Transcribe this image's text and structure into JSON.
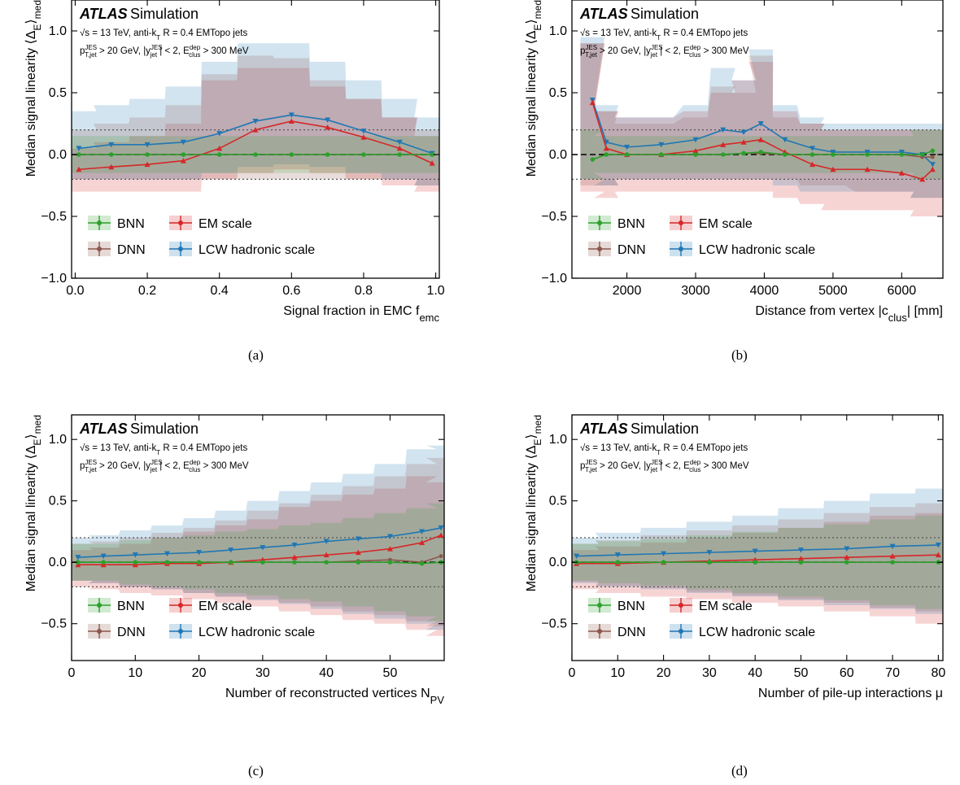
{
  "colors": {
    "BNN": "#2ca02c",
    "DNN": "#8c564b",
    "EM": "#d62728",
    "LCW": "#1f77b4"
  },
  "labels": {
    "atlas": "ATLAS",
    "simulation": "Simulation",
    "energy_line_prefix": "= 13 TeV, anti-k",
    "energy_line_suffix": " R = 0.4 EMTopo jets",
    "sqrt_s": "√s",
    "kt_sub": "T",
    "cut_line": "> 20 GeV, |y",
    "cut_line2": "| < 2, E",
    "cut_line3": "> 300 MeV",
    "pt": "p",
    "sup_jes": "JES",
    "sub_tjet": "T,jet",
    "sub_jet": "jet",
    "sup_dep": "dep",
    "sub_clus": "clus",
    "ylabel": "Median signal linearity ⟨Δ",
    "ylabel_sub": "E",
    "ylabel_end": "⟩",
    "ylabel_med": "med"
  },
  "legend": [
    "BNN",
    "EM scale",
    "DNN",
    "LCW hadronic scale"
  ],
  "captions": [
    "(a)",
    "(b)",
    "(c)",
    "(d)"
  ],
  "chart_data": [
    {
      "type": "line",
      "id": "a",
      "xlabel": "Signal fraction in EMC f",
      "xlabel_sub": "emc",
      "xlim": [
        -0.01,
        1.01
      ],
      "ylim": [
        -1.0,
        1.25
      ],
      "xticks": [
        0.0,
        0.2,
        0.4,
        0.6,
        0.8,
        1.0
      ],
      "xtick_labels": [
        "0.0",
        "0.2",
        "0.4",
        "0.6",
        "0.8",
        "1.0"
      ],
      "yticks": [
        -1.0,
        -0.5,
        0.0,
        0.5,
        1.0
      ],
      "ytick_labels": [
        "−1.0",
        "−0.5",
        "0.0",
        "0.5",
        "1.0"
      ],
      "x": [
        0.01,
        0.1,
        0.2,
        0.3,
        0.4,
        0.5,
        0.6,
        0.7,
        0.8,
        0.9,
        0.99
      ],
      "series": [
        {
          "name": "BNN",
          "values": [
            0.0,
            0.0,
            0.0,
            0.0,
            0.0,
            0.0,
            0.0,
            0.0,
            0.0,
            0.0,
            0.0
          ]
        },
        {
          "name": "DNN",
          "values": [
            0.0,
            0.0,
            0.0,
            0.0,
            0.0,
            0.0,
            0.0,
            0.0,
            0.0,
            0.0,
            0.0
          ]
        },
        {
          "name": "EM scale",
          "values": [
            -0.12,
            -0.1,
            -0.08,
            -0.05,
            0.05,
            0.2,
            0.27,
            0.22,
            0.14,
            0.05,
            -0.07
          ]
        },
        {
          "name": "LCW hadronic scale",
          "values": [
            0.05,
            0.08,
            0.08,
            0.1,
            0.17,
            0.27,
            0.32,
            0.28,
            0.19,
            0.1,
            0.01
          ]
        }
      ],
      "bands": [
        {
          "name": "EM scale",
          "lo": [
            -0.3,
            -0.3,
            -0.3,
            -0.3,
            -0.2,
            -0.15,
            -0.12,
            -0.15,
            -0.2,
            -0.25,
            -0.3
          ],
          "hi": [
            0.05,
            0.1,
            0.15,
            0.25,
            0.6,
            0.7,
            0.7,
            0.55,
            0.45,
            0.3,
            0.15
          ]
        },
        {
          "name": "LCW hadronic scale",
          "lo": [
            -0.2,
            -0.2,
            -0.2,
            -0.2,
            -0.15,
            -0.1,
            -0.08,
            -0.1,
            -0.15,
            -0.2,
            -0.25
          ],
          "hi": [
            0.35,
            0.4,
            0.45,
            0.55,
            0.75,
            0.9,
            0.9,
            0.75,
            0.6,
            0.45,
            0.3
          ]
        },
        {
          "name": "DNN",
          "lo": [
            -0.2,
            -0.2,
            -0.2,
            -0.2,
            -0.2,
            -0.2,
            -0.2,
            -0.2,
            -0.2,
            -0.2,
            -0.25
          ],
          "hi": [
            0.2,
            0.25,
            0.3,
            0.4,
            0.65,
            0.8,
            0.78,
            0.6,
            0.45,
            0.3,
            0.2
          ]
        },
        {
          "name": "BNN",
          "lo": [
            -0.15,
            -0.15,
            -0.15,
            -0.15,
            -0.15,
            -0.15,
            -0.15,
            -0.15,
            -0.15,
            -0.15,
            -0.15
          ],
          "hi": [
            0.15,
            0.15,
            0.15,
            0.15,
            0.15,
            0.15,
            0.15,
            0.15,
            0.15,
            0.15,
            0.15
          ]
        }
      ],
      "hlines": [
        0.2,
        -0.2
      ]
    },
    {
      "type": "line",
      "id": "b",
      "xlabel": "Distance from vertex |c",
      "xlabel_sub": "clus",
      "xlabel_end": "| [mm]",
      "xlim": [
        1200,
        6600
      ],
      "ylim": [
        -1.0,
        1.25
      ],
      "xticks": [
        2000,
        3000,
        4000,
        5000,
        6000
      ],
      "xtick_labels": [
        "2000",
        "3000",
        "4000",
        "5000",
        "6000"
      ],
      "yticks": [
        -1.0,
        -0.5,
        0.0,
        0.5,
        1.0
      ],
      "ytick_labels": [
        "−1.0",
        "−0.5",
        "0.0",
        "0.5",
        "1.0"
      ],
      "x": [
        1500,
        1700,
        2000,
        2500,
        3000,
        3400,
        3700,
        3950,
        4300,
        4700,
        5000,
        5500,
        6000,
        6300,
        6450
      ],
      "series": [
        {
          "name": "BNN",
          "values": [
            -0.04,
            0.0,
            0.0,
            0.0,
            0.0,
            0.0,
            0.01,
            0.02,
            0.0,
            0.0,
            0.0,
            0.0,
            0.0,
            0.0,
            0.03
          ]
        },
        {
          "name": "DNN",
          "values": [
            -0.04,
            0.0,
            0.0,
            0.0,
            0.0,
            0.0,
            0.01,
            0.01,
            0.0,
            0.0,
            0.0,
            0.0,
            0.0,
            -0.02,
            -0.02
          ]
        },
        {
          "name": "EM scale",
          "values": [
            0.42,
            0.05,
            0.0,
            0.0,
            0.03,
            0.08,
            0.1,
            0.12,
            0.02,
            -0.08,
            -0.12,
            -0.12,
            -0.15,
            -0.2,
            -0.12
          ]
        },
        {
          "name": "LCW hadronic scale",
          "values": [
            0.44,
            0.1,
            0.06,
            0.08,
            0.12,
            0.2,
            0.18,
            0.25,
            0.12,
            0.05,
            0.02,
            0.02,
            0.02,
            0.0,
            -0.08
          ]
        }
      ],
      "bands": [
        {
          "name": "EM scale",
          "lo": [
            -0.3,
            -0.35,
            -0.3,
            -0.3,
            -0.3,
            -0.3,
            -0.3,
            -0.3,
            -0.35,
            -0.4,
            -0.45,
            -0.45,
            -0.45,
            -0.5,
            -0.5
          ]
        },
        {
          "name": "LCW hadronic scale",
          "lo": [
            -0.2,
            -0.25,
            -0.2,
            -0.2,
            -0.2,
            -0.2,
            -0.2,
            -0.2,
            -0.25,
            -0.3,
            -0.3,
            -0.3,
            -0.3,
            -0.35,
            -0.35
          ]
        },
        {
          "name": "DNN",
          "lo": [
            -0.25,
            -0.25,
            -0.2,
            -0.2,
            -0.2,
            -0.2,
            -0.2,
            -0.2,
            -0.2,
            -0.25,
            -0.25,
            -0.3,
            -0.3,
            -0.35,
            -0.35
          ]
        },
        {
          "name": "BNN",
          "lo": [
            -0.2,
            -0.15,
            -0.15,
            -0.15,
            -0.15,
            -0.15,
            -0.15,
            -0.15,
            -0.15,
            -0.15,
            -0.15,
            -0.15,
            -0.15,
            -0.2,
            -0.2
          ]
        }
      ],
      "bands_hi": [
        [
          0.9,
          0.35,
          0.3,
          0.3,
          0.35,
          0.5,
          0.6,
          0.75,
          0.35,
          0.25,
          0.2,
          0.2,
          0.2,
          0.2,
          0.2
        ],
        [
          0.95,
          0.4,
          0.3,
          0.3,
          0.4,
          0.7,
          0.6,
          0.85,
          0.4,
          0.3,
          0.25,
          0.25,
          0.25,
          0.25,
          0.25
        ],
        [
          0.9,
          0.35,
          0.25,
          0.25,
          0.3,
          0.55,
          0.5,
          0.8,
          0.3,
          0.25,
          0.2,
          0.2,
          0.2,
          0.2,
          0.2
        ],
        [
          0.2,
          0.15,
          0.15,
          0.15,
          0.15,
          0.15,
          0.15,
          0.15,
          0.15,
          0.15,
          0.15,
          0.15,
          0.15,
          0.2,
          0.2
        ]
      ],
      "hlines": [
        0.2,
        -0.2
      ]
    },
    {
      "type": "line",
      "id": "c",
      "xlabel": "Number of reconstructed vertices N",
      "xlabel_sub": "PV",
      "xlim": [
        0,
        58.5
      ],
      "ylim": [
        -0.8,
        1.2
      ],
      "xticks": [
        0,
        10,
        20,
        30,
        40,
        50
      ],
      "xtick_labels": [
        "0",
        "10",
        "20",
        "30",
        "40",
        "50"
      ],
      "yticks": [
        -0.5,
        0.0,
        0.5,
        1.0
      ],
      "ytick_labels": [
        "−0.5",
        "0.0",
        "0.5",
        "1.0"
      ],
      "x": [
        1,
        5,
        10,
        15,
        20,
        25,
        30,
        35,
        40,
        45,
        50,
        55,
        58
      ],
      "series": [
        {
          "name": "BNN",
          "values": [
            0.0,
            0.0,
            0.0,
            0.0,
            0.0,
            0.0,
            0.0,
            0.0,
            0.0,
            0.0,
            0.0,
            -0.01,
            0.0
          ]
        },
        {
          "name": "DNN",
          "values": [
            0.0,
            0.0,
            0.0,
            0.0,
            0.0,
            0.0,
            0.0,
            0.0,
            0.0,
            0.01,
            0.02,
            0.0,
            0.05
          ]
        },
        {
          "name": "EM scale",
          "values": [
            -0.02,
            -0.02,
            -0.02,
            -0.01,
            -0.01,
            0.0,
            0.02,
            0.04,
            0.06,
            0.08,
            0.11,
            0.16,
            0.22
          ]
        },
        {
          "name": "LCW hadronic scale",
          "values": [
            0.04,
            0.05,
            0.06,
            0.07,
            0.08,
            0.1,
            0.12,
            0.14,
            0.17,
            0.19,
            0.21,
            0.25,
            0.28
          ]
        }
      ],
      "bands": [
        {
          "name": "EM scale",
          "lo": [
            -0.2,
            -0.22,
            -0.25,
            -0.27,
            -0.3,
            -0.33,
            -0.36,
            -0.4,
            -0.43,
            -0.47,
            -0.5,
            -0.55,
            -0.6
          ]
        },
        {
          "name": "LCW hadronic scale",
          "lo": [
            -0.15,
            -0.17,
            -0.2,
            -0.22,
            -0.25,
            -0.28,
            -0.31,
            -0.34,
            -0.38,
            -0.42,
            -0.46,
            -0.5,
            -0.55
          ]
        },
        {
          "name": "DNN",
          "lo": [
            -0.15,
            -0.17,
            -0.2,
            -0.22,
            -0.25,
            -0.28,
            -0.3,
            -0.33,
            -0.36,
            -0.4,
            -0.43,
            -0.48,
            -0.52
          ]
        },
        {
          "name": "BNN",
          "lo": [
            -0.15,
            -0.15,
            -0.18,
            -0.2,
            -0.22,
            -0.25,
            -0.27,
            -0.3,
            -0.32,
            -0.36,
            -0.4,
            -0.44,
            -0.48
          ]
        }
      ],
      "bands_hi": [
        [
          0.1,
          0.12,
          0.15,
          0.2,
          0.25,
          0.3,
          0.35,
          0.45,
          0.5,
          0.55,
          0.6,
          0.7,
          0.65
        ],
        [
          0.2,
          0.22,
          0.26,
          0.3,
          0.36,
          0.42,
          0.5,
          0.58,
          0.65,
          0.72,
          0.8,
          0.92,
          0.95
        ],
        [
          0.15,
          0.17,
          0.2,
          0.24,
          0.28,
          0.34,
          0.42,
          0.48,
          0.55,
          0.62,
          0.7,
          0.8,
          0.85
        ],
        [
          0.15,
          0.15,
          0.18,
          0.2,
          0.22,
          0.25,
          0.27,
          0.3,
          0.32,
          0.36,
          0.4,
          0.44,
          0.48
        ]
      ],
      "hlines": [
        0.2,
        -0.2
      ]
    },
    {
      "type": "line",
      "id": "d",
      "xlabel": "Number of pile-up interactions μ",
      "xlim": [
        0,
        81
      ],
      "ylim": [
        -0.8,
        1.2
      ],
      "xticks": [
        0,
        10,
        20,
        30,
        40,
        50,
        60,
        70,
        80
      ],
      "xtick_labels": [
        "0",
        "10",
        "20",
        "30",
        "40",
        "50",
        "60",
        "70",
        "80"
      ],
      "yticks": [
        -0.5,
        0.0,
        0.5,
        1.0
      ],
      "ytick_labels": [
        "−0.5",
        "0.0",
        "0.5",
        "1.0"
      ],
      "x": [
        1,
        10,
        20,
        30,
        40,
        50,
        60,
        70,
        80
      ],
      "series": [
        {
          "name": "BNN",
          "values": [
            0.0,
            0.0,
            0.0,
            0.0,
            0.0,
            0.0,
            0.0,
            0.0,
            0.0
          ]
        },
        {
          "name": "DNN",
          "values": [
            0.0,
            0.0,
            0.0,
            0.0,
            0.0,
            0.0,
            0.0,
            0.0,
            0.0
          ]
        },
        {
          "name": "EM scale",
          "values": [
            -0.01,
            -0.01,
            0.0,
            0.01,
            0.02,
            0.03,
            0.04,
            0.05,
            0.06
          ]
        },
        {
          "name": "LCW hadronic scale",
          "values": [
            0.05,
            0.06,
            0.07,
            0.08,
            0.09,
            0.1,
            0.11,
            0.13,
            0.14
          ]
        }
      ],
      "bands": [
        {
          "name": "EM scale",
          "lo": [
            -0.22,
            -0.25,
            -0.28,
            -0.3,
            -0.33,
            -0.36,
            -0.4,
            -0.44,
            -0.5
          ]
        },
        {
          "name": "LCW hadronic scale",
          "lo": [
            -0.17,
            -0.2,
            -0.22,
            -0.25,
            -0.28,
            -0.31,
            -0.35,
            -0.38,
            -0.42
          ]
        },
        {
          "name": "DNN",
          "lo": [
            -0.16,
            -0.19,
            -0.21,
            -0.24,
            -0.27,
            -0.3,
            -0.33,
            -0.37,
            -0.4
          ]
        },
        {
          "name": "BNN",
          "lo": [
            -0.15,
            -0.17,
            -0.19,
            -0.22,
            -0.25,
            -0.28,
            -0.31,
            -0.35,
            -0.38
          ]
        }
      ],
      "bands_hi": [
        [
          0.1,
          0.13,
          0.16,
          0.2,
          0.24,
          0.28,
          0.33,
          0.38,
          0.4
        ],
        [
          0.2,
          0.24,
          0.28,
          0.33,
          0.38,
          0.44,
          0.5,
          0.56,
          0.6
        ],
        [
          0.15,
          0.18,
          0.22,
          0.26,
          0.3,
          0.35,
          0.4,
          0.45,
          0.48
        ],
        [
          0.15,
          0.17,
          0.19,
          0.22,
          0.25,
          0.28,
          0.31,
          0.35,
          0.38
        ]
      ],
      "hlines": [
        0.2,
        -0.2
      ]
    }
  ]
}
